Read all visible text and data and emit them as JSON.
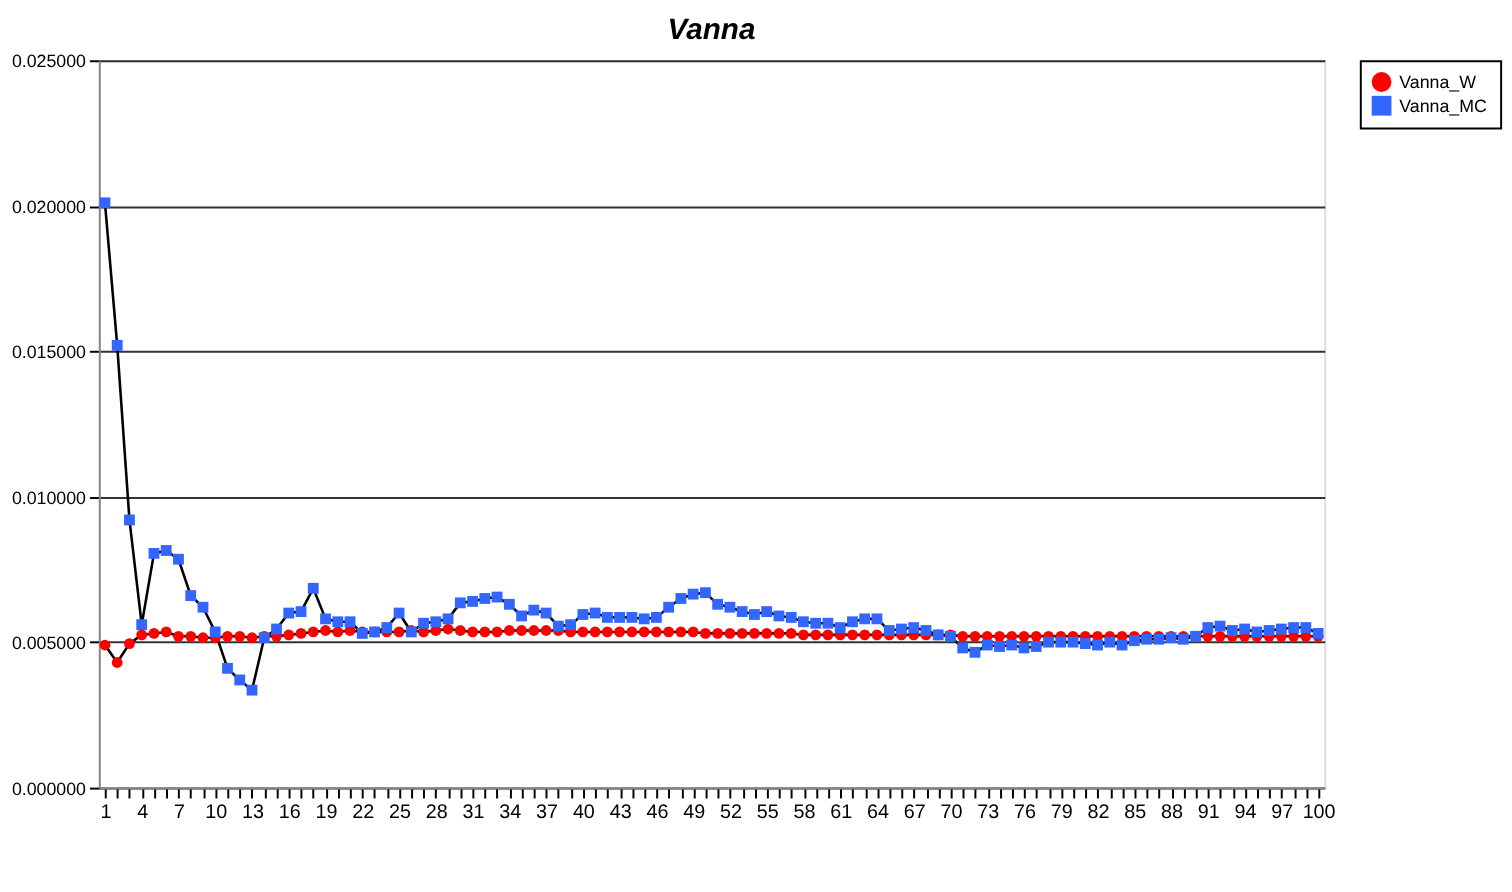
{
  "chart_data": {
    "type": "line",
    "title": "Vanna",
    "categories": [
      "1",
      null,
      null,
      "4",
      null,
      null,
      "7",
      null,
      null,
      "10",
      null,
      null,
      "13",
      null,
      null,
      "16",
      null,
      null,
      "19",
      null,
      null,
      "22",
      null,
      null,
      "25",
      null,
      null,
      "28",
      null,
      null,
      "31",
      null,
      null,
      "34",
      null,
      null,
      "37",
      null,
      null,
      "40",
      null,
      null,
      "43",
      null,
      null,
      "46",
      null,
      null,
      "49",
      null,
      null,
      "52",
      null,
      null,
      "55",
      null,
      null,
      "58",
      null,
      null,
      "61",
      null,
      null,
      "64",
      null,
      null,
      "67",
      null,
      null,
      "70",
      null,
      null,
      "73",
      null,
      null,
      "76",
      null,
      null,
      "79",
      null,
      null,
      "82",
      null,
      null,
      "85",
      null,
      null,
      "88",
      null,
      null,
      "91",
      null,
      null,
      "94",
      null,
      null,
      "97",
      null,
      null,
      "100"
    ],
    "series": [
      {
        "name": "Vanna_W",
        "color": "#ff0000",
        "marker": "circle",
        "values": [
          0.0049,
          0.0043,
          0.00495,
          0.00525,
          0.0053,
          0.00535,
          0.0052,
          0.0052,
          0.00515,
          0.00515,
          0.0052,
          0.0052,
          0.00515,
          0.0052,
          0.0052,
          0.00525,
          0.0053,
          0.00535,
          0.0054,
          0.00535,
          0.0054,
          0.00535,
          0.00535,
          0.00535,
          0.00535,
          0.0054,
          0.00535,
          0.0054,
          0.00545,
          0.0054,
          0.00535,
          0.00535,
          0.00535,
          0.0054,
          0.0054,
          0.0054,
          0.0054,
          0.0054,
          0.00535,
          0.00535,
          0.00535,
          0.00535,
          0.00535,
          0.00535,
          0.00535,
          0.00535,
          0.00535,
          0.00535,
          0.00535,
          0.0053,
          0.0053,
          0.0053,
          0.0053,
          0.0053,
          0.0053,
          0.0053,
          0.0053,
          0.00525,
          0.00525,
          0.00525,
          0.00525,
          0.00525,
          0.00525,
          0.00525,
          0.00525,
          0.00525,
          0.00525,
          0.00525,
          0.00525,
          0.00525,
          0.0052,
          0.0052,
          0.0052,
          0.0052,
          0.0052,
          0.0052,
          0.0052,
          0.0052,
          0.0052,
          0.0052,
          0.0052,
          0.0052,
          0.0052,
          0.0052,
          0.0052,
          0.0052,
          0.0052,
          0.0052,
          0.0052,
          0.0052,
          0.0052,
          0.0052,
          0.0052,
          0.0052,
          0.0052,
          0.0052,
          0.0052,
          0.0052,
          0.0052,
          0.0052
        ]
      },
      {
        "name": "Vanna_MC",
        "color": "#3366ff",
        "marker": "square",
        "values": [
          0.0201,
          0.0152,
          0.0092,
          0.0056,
          0.00805,
          0.00815,
          0.00785,
          0.0066,
          0.0062,
          0.00535,
          0.0041,
          0.0037,
          0.00335,
          0.00515,
          0.00545,
          0.006,
          0.00605,
          0.00685,
          0.0058,
          0.0057,
          0.0057,
          0.0053,
          0.00535,
          0.0055,
          0.006,
          0.00535,
          0.00565,
          0.0057,
          0.0058,
          0.00635,
          0.0064,
          0.0065,
          0.00655,
          0.0063,
          0.0059,
          0.0061,
          0.006,
          0.00555,
          0.0056,
          0.00595,
          0.006,
          0.00585,
          0.00585,
          0.00585,
          0.0058,
          0.00585,
          0.0062,
          0.0065,
          0.00665,
          0.0067,
          0.0063,
          0.0062,
          0.00605,
          0.00595,
          0.00605,
          0.0059,
          0.00585,
          0.0057,
          0.00565,
          0.00565,
          0.0055,
          0.0057,
          0.0058,
          0.0058,
          0.0054,
          0.00545,
          0.0055,
          0.0054,
          0.00525,
          0.0052,
          0.0048,
          0.00465,
          0.0049,
          0.00485,
          0.0049,
          0.0048,
          0.00485,
          0.005,
          0.005,
          0.005,
          0.00495,
          0.0049,
          0.005,
          0.0049,
          0.00505,
          0.0051,
          0.0051,
          0.00515,
          0.0051,
          0.0052,
          0.0055,
          0.00555,
          0.0054,
          0.00545,
          0.00535,
          0.0054,
          0.00545,
          0.0055,
          0.0055,
          0.0053
        ]
      }
    ],
    "ylim": [
      0,
      0.025
    ],
    "yticks": [
      {
        "value": 0,
        "label": "0.000000"
      },
      {
        "value": 0.005,
        "label": "0.005000"
      },
      {
        "value": 0.01,
        "label": "0.010000"
      },
      {
        "value": 0.015,
        "label": "0.015000"
      },
      {
        "value": 0.02,
        "label": "0.020000"
      },
      {
        "value": 0.025,
        "label": "0.025000"
      }
    ],
    "grid": "y",
    "legend": "right"
  }
}
